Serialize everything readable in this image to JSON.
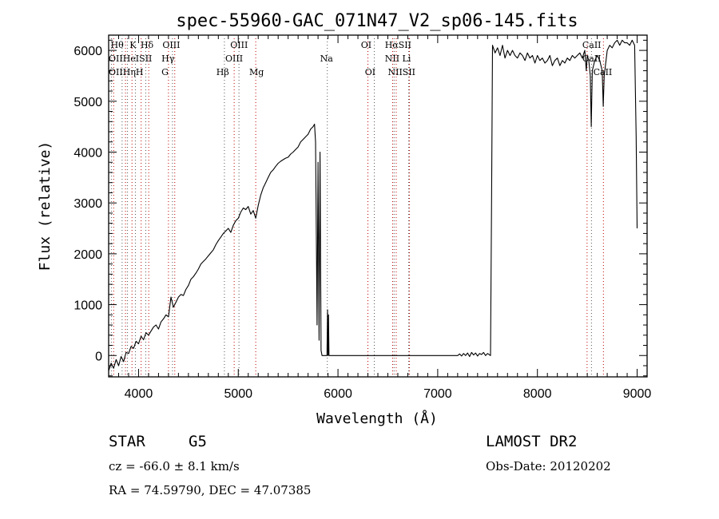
{
  "chart_data": {
    "type": "line",
    "title": "spec-55960-GAC_071N47_V2_sp06-145.fits",
    "xlabel": "Wavelength (Å)",
    "ylabel": "Flux (relative)",
    "xlim": [
      3700,
      9100
    ],
    "ylim": [
      -420,
      6300
    ],
    "xticks": [
      4000,
      5000,
      6000,
      7000,
      8000,
      9000
    ],
    "yticks": [
      0,
      1000,
      2000,
      3000,
      4000,
      5000,
      6000
    ],
    "grid": false,
    "series": [
      {
        "color": "#000000",
        "points": [
          [
            3700,
            -300
          ],
          [
            3725,
            -150
          ],
          [
            3750,
            -250
          ],
          [
            3775,
            -80
          ],
          [
            3800,
            -200
          ],
          [
            3825,
            -20
          ],
          [
            3850,
            -120
          ],
          [
            3875,
            60
          ],
          [
            3900,
            40
          ],
          [
            3925,
            180
          ],
          [
            3950,
            140
          ],
          [
            3975,
            280
          ],
          [
            4000,
            230
          ],
          [
            4025,
            380
          ],
          [
            4050,
            310
          ],
          [
            4075,
            450
          ],
          [
            4100,
            400
          ],
          [
            4125,
            480
          ],
          [
            4150,
            560
          ],
          [
            4175,
            600
          ],
          [
            4200,
            520
          ],
          [
            4225,
            660
          ],
          [
            4250,
            720
          ],
          [
            4275,
            800
          ],
          [
            4300,
            760
          ],
          [
            4325,
            1150
          ],
          [
            4350,
            950
          ],
          [
            4375,
            1050
          ],
          [
            4400,
            1150
          ],
          [
            4425,
            1200
          ],
          [
            4450,
            1180
          ],
          [
            4475,
            1300
          ],
          [
            4500,
            1380
          ],
          [
            4525,
            1500
          ],
          [
            4550,
            1550
          ],
          [
            4575,
            1620
          ],
          [
            4600,
            1700
          ],
          [
            4625,
            1800
          ],
          [
            4650,
            1850
          ],
          [
            4675,
            1900
          ],
          [
            4700,
            1960
          ],
          [
            4725,
            2020
          ],
          [
            4750,
            2080
          ],
          [
            4775,
            2180
          ],
          [
            4800,
            2260
          ],
          [
            4825,
            2330
          ],
          [
            4850,
            2400
          ],
          [
            4875,
            2450
          ],
          [
            4900,
            2500
          ],
          [
            4925,
            2420
          ],
          [
            4950,
            2560
          ],
          [
            4975,
            2650
          ],
          [
            5000,
            2700
          ],
          [
            5025,
            2820
          ],
          [
            5050,
            2900
          ],
          [
            5075,
            2870
          ],
          [
            5100,
            2930
          ],
          [
            5125,
            2780
          ],
          [
            5150,
            2850
          ],
          [
            5175,
            2700
          ],
          [
            5200,
            2950
          ],
          [
            5225,
            3150
          ],
          [
            5250,
            3300
          ],
          [
            5275,
            3400
          ],
          [
            5300,
            3500
          ],
          [
            5325,
            3600
          ],
          [
            5350,
            3650
          ],
          [
            5375,
            3720
          ],
          [
            5400,
            3780
          ],
          [
            5425,
            3820
          ],
          [
            5450,
            3850
          ],
          [
            5475,
            3880
          ],
          [
            5500,
            3900
          ],
          [
            5525,
            3960
          ],
          [
            5550,
            4000
          ],
          [
            5575,
            4050
          ],
          [
            5600,
            4100
          ],
          [
            5625,
            4200
          ],
          [
            5650,
            4250
          ],
          [
            5675,
            4300
          ],
          [
            5700,
            4350
          ],
          [
            5725,
            4450
          ],
          [
            5750,
            4500
          ],
          [
            5765,
            4550
          ],
          [
            5775,
            4200
          ],
          [
            5790,
            600
          ],
          [
            5800,
            3800
          ],
          [
            5810,
            300
          ],
          [
            5820,
            4000
          ],
          [
            5830,
            100
          ],
          [
            5840,
            0
          ],
          [
            5890,
            0
          ],
          [
            5895,
            900
          ],
          [
            5900,
            0
          ],
          [
            5905,
            800
          ],
          [
            5910,
            0
          ],
          [
            6500,
            0
          ],
          [
            7000,
            0
          ],
          [
            7200,
            0
          ],
          [
            7220,
            30
          ],
          [
            7240,
            -10
          ],
          [
            7260,
            40
          ],
          [
            7280,
            0
          ],
          [
            7300,
            50
          ],
          [
            7320,
            -20
          ],
          [
            7340,
            60
          ],
          [
            7360,
            10
          ],
          [
            7380,
            50
          ],
          [
            7400,
            -10
          ],
          [
            7420,
            40
          ],
          [
            7440,
            20
          ],
          [
            7460,
            60
          ],
          [
            7480,
            0
          ],
          [
            7500,
            40
          ],
          [
            7530,
            0
          ],
          [
            7540,
            3000
          ],
          [
            7550,
            6100
          ],
          [
            7575,
            5950
          ],
          [
            7600,
            6050
          ],
          [
            7625,
            5900
          ],
          [
            7650,
            6100
          ],
          [
            7675,
            5850
          ],
          [
            7700,
            6000
          ],
          [
            7725,
            5900
          ],
          [
            7750,
            6000
          ],
          [
            7775,
            5900
          ],
          [
            7800,
            5850
          ],
          [
            7825,
            5950
          ],
          [
            7850,
            5900
          ],
          [
            7875,
            5800
          ],
          [
            7900,
            5950
          ],
          [
            7925,
            5850
          ],
          [
            7950,
            5900
          ],
          [
            7975,
            5750
          ],
          [
            8000,
            5900
          ],
          [
            8025,
            5800
          ],
          [
            8050,
            5850
          ],
          [
            8075,
            5750
          ],
          [
            8100,
            5800
          ],
          [
            8125,
            5900
          ],
          [
            8150,
            5700
          ],
          [
            8175,
            5800
          ],
          [
            8200,
            5850
          ],
          [
            8225,
            5700
          ],
          [
            8250,
            5800
          ],
          [
            8275,
            5750
          ],
          [
            8300,
            5850
          ],
          [
            8325,
            5800
          ],
          [
            8350,
            5900
          ],
          [
            8375,
            5850
          ],
          [
            8400,
            5900
          ],
          [
            8425,
            5950
          ],
          [
            8450,
            5850
          ],
          [
            8475,
            6000
          ],
          [
            8490,
            5600
          ],
          [
            8500,
            5900
          ],
          [
            8515,
            5800
          ],
          [
            8530,
            5500
          ],
          [
            8540,
            4500
          ],
          [
            8550,
            5600
          ],
          [
            8575,
            5800
          ],
          [
            8600,
            5900
          ],
          [
            8625,
            5800
          ],
          [
            8650,
            5600
          ],
          [
            8660,
            4900
          ],
          [
            8670,
            5500
          ],
          [
            8700,
            6000
          ],
          [
            8725,
            6100
          ],
          [
            8750,
            6050
          ],
          [
            8775,
            6150
          ],
          [
            8800,
            6200
          ],
          [
            8825,
            6100
          ],
          [
            8850,
            6200
          ],
          [
            8875,
            6150
          ],
          [
            8900,
            6150
          ],
          [
            8925,
            6100
          ],
          [
            8950,
            6200
          ],
          [
            8975,
            6100
          ],
          [
            8990,
            4300
          ],
          [
            9000,
            2500
          ]
        ]
      }
    ],
    "lines": [
      {
        "wavelength": 3727,
        "color": "#555555"
      },
      {
        "wavelength": 3750,
        "color": "#c00000"
      },
      {
        "wavelength": 3835,
        "color": "#555555"
      },
      {
        "wavelength": 3869,
        "color": "#c00000"
      },
      {
        "wavelength": 3889,
        "color": "#555555"
      },
      {
        "wavelength": 3934,
        "color": "#c00000"
      },
      {
        "wavelength": 3968,
        "color": "#555555"
      },
      {
        "wavelength": 4026,
        "color": "#c00000"
      },
      {
        "wavelength": 4072,
        "color": "#555555"
      },
      {
        "wavelength": 4102,
        "color": "#c00000"
      },
      {
        "wavelength": 4300,
        "color": "#c00000"
      },
      {
        "wavelength": 4340,
        "color": "#555555"
      },
      {
        "wavelength": 4363,
        "color": "#c00000"
      },
      {
        "wavelength": 4861,
        "color": "#555555"
      },
      {
        "wavelength": 4959,
        "color": "#c00000"
      },
      {
        "wavelength": 5007,
        "color": "#555555"
      },
      {
        "wavelength": 5175,
        "color": "#c00000"
      },
      {
        "wavelength": 5893,
        "color": "#555555"
      },
      {
        "wavelength": 6300,
        "color": "#c00000"
      },
      {
        "wavelength": 6364,
        "color": "#555555"
      },
      {
        "wavelength": 6548,
        "color": "#c00000"
      },
      {
        "wavelength": 6563,
        "color": "#555555"
      },
      {
        "wavelength": 6584,
        "color": "#c00000"
      },
      {
        "wavelength": 6708,
        "color": "#555555"
      },
      {
        "wavelength": 6717,
        "color": "#c00000"
      },
      {
        "wavelength": 8498,
        "color": "#c00000"
      },
      {
        "wavelength": 8542,
        "color": "#555555"
      },
      {
        "wavelength": 8662,
        "color": "#c00000"
      }
    ],
    "annotations": [
      {
        "text": "Hθ",
        "wavelength": 3720,
        "row": 1
      },
      {
        "text": "K",
        "wavelength": 3910,
        "row": 1
      },
      {
        "text": "Hδ",
        "wavelength": 4020,
        "row": 1
      },
      {
        "text": "OIII",
        "wavelength": 4240,
        "row": 1
      },
      {
        "text": "OIII",
        "wavelength": 4920,
        "row": 1
      },
      {
        "text": "OI",
        "wavelength": 6230,
        "row": 1
      },
      {
        "text": "HαSII",
        "wavelength": 6470,
        "row": 1
      },
      {
        "text": "CaII",
        "wavelength": 8450,
        "row": 1
      },
      {
        "text": "OIIHeISII",
        "wavelength": 3700,
        "row": 2
      },
      {
        "text": "Hγ",
        "wavelength": 4230,
        "row": 2
      },
      {
        "text": "OIII",
        "wavelength": 4870,
        "row": 2
      },
      {
        "text": "Na",
        "wavelength": 5820,
        "row": 2
      },
      {
        "text": "NII Li",
        "wavelength": 6470,
        "row": 2
      },
      {
        "text": "CaII",
        "wavelength": 8450,
        "row": 2
      },
      {
        "text": "OIIHηH",
        "wavelength": 3700,
        "row": 3
      },
      {
        "text": "G",
        "wavelength": 4230,
        "row": 3
      },
      {
        "text": "Hβ",
        "wavelength": 4780,
        "row": 3
      },
      {
        "text": "Mg",
        "wavelength": 5110,
        "row": 3
      },
      {
        "text": "OI",
        "wavelength": 6270,
        "row": 3
      },
      {
        "text": "NIISII",
        "wavelength": 6500,
        "row": 3
      },
      {
        "text": "CaII",
        "wavelength": 8560,
        "row": 3
      }
    ]
  },
  "info": {
    "object_class": "STAR",
    "subclass": "G5",
    "survey": "LAMOST DR2",
    "redshift": "cz = -66.0 ± 8.1 km/s",
    "obs_date": "Obs-Date: 20120202",
    "coords": "RA =  74.59790, DEC =  47.07385"
  }
}
